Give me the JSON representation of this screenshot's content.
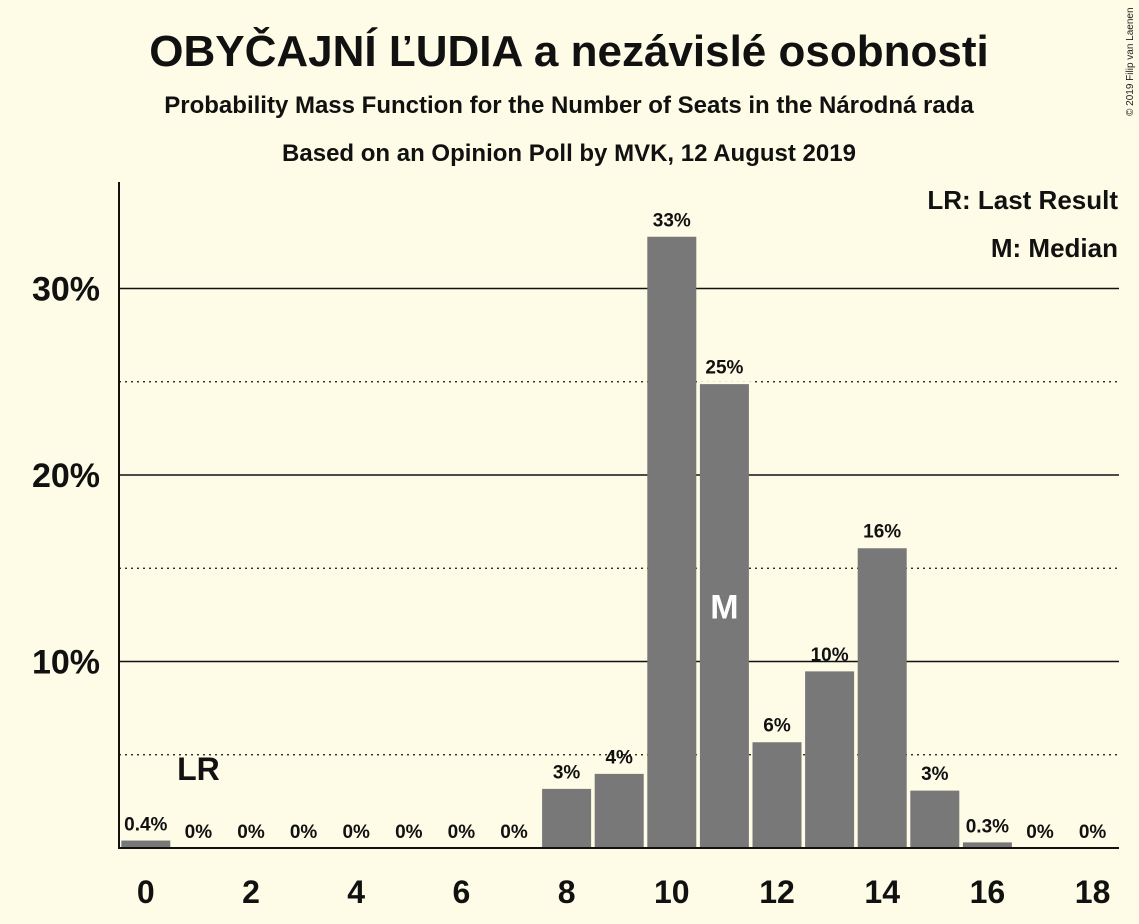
{
  "chart_data": {
    "type": "bar",
    "title": "OBYČAJNÍ ĽUDIA a nezávislé osobnosti",
    "subtitle": "Probability Mass Function for the Number of Seats in the Národná rada",
    "subtitle2": "Based on an Opinion Poll by MVK, 12 August 2019",
    "credit": "© 2019 Filip van Laenen",
    "xlabel": "",
    "ylabel": "",
    "categories": [
      0,
      1,
      2,
      3,
      4,
      5,
      6,
      7,
      8,
      9,
      10,
      11,
      12,
      13,
      14,
      15,
      16,
      17,
      18
    ],
    "values": [
      0.4,
      0,
      0,
      0,
      0,
      0,
      0,
      0,
      3.2,
      4.0,
      32.8,
      24.9,
      5.7,
      9.5,
      16.1,
      3.1,
      0.3,
      0,
      0
    ],
    "data_labels": [
      "0.4%",
      "0%",
      "0%",
      "0%",
      "0%",
      "0%",
      "0%",
      "0%",
      "3%",
      "4%",
      "33%",
      "25%",
      "6%",
      "10%",
      "16%",
      "3%",
      "0.3%",
      "0%",
      "0%"
    ],
    "x_tick_labels": [
      "0",
      "2",
      "4",
      "6",
      "8",
      "10",
      "12",
      "14",
      "16",
      "18"
    ],
    "y_ticks": [
      10,
      20,
      30
    ],
    "y_tick_labels": [
      "10%",
      "20%",
      "30%"
    ],
    "y_minor_gridlines": [
      5,
      15,
      25
    ],
    "ylim": [
      0,
      35.7
    ],
    "last_result_seat": 1,
    "median_seat": 11,
    "last_result_marker": "LR",
    "median_marker": "M",
    "legend": [
      "LR: Last Result",
      "M: Median"
    ],
    "legend_position": "top-right",
    "colors": {
      "bar": "#787878",
      "background": "#fefbe6",
      "text": "#111111",
      "grid": "#111111"
    }
  }
}
